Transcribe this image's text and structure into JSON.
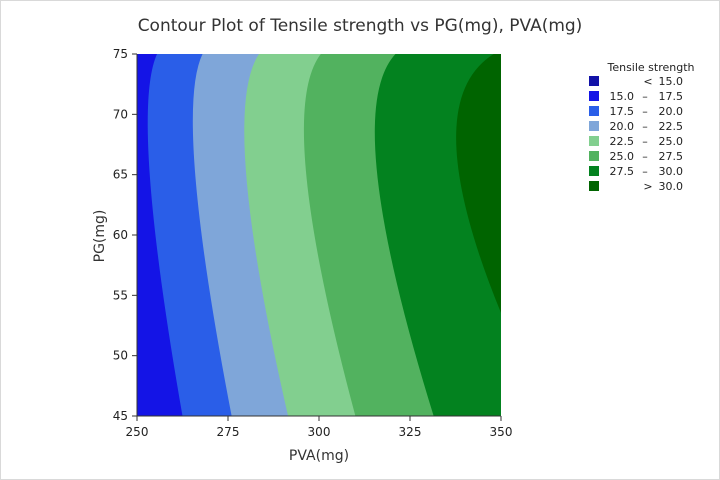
{
  "chart_data": {
    "type": "contour",
    "title": "Contour Plot of Tensile strength vs PG(mg), PVA(mg)",
    "xlabel": "PVA(mg)",
    "ylabel": "PG(mg)",
    "xlim": [
      250,
      350
    ],
    "ylim": [
      45,
      75
    ],
    "x_ticks": [
      250,
      275,
      300,
      325,
      350
    ],
    "y_ticks": [
      45,
      50,
      55,
      60,
      65,
      70,
      75
    ],
    "x_tick_labels": [
      "250",
      "275",
      "300",
      "325",
      "350"
    ],
    "y_tick_labels": [
      "45",
      "50",
      "55",
      "60",
      "65",
      "70",
      "75"
    ],
    "response": "Tensile strength",
    "contour_boundaries": [
      {
        "level": 15.0,
        "x_at_y": [
          [
            45,
            250.0
          ],
          [
            65,
            250.0
          ],
          [
            75,
            250.0
          ]
        ]
      },
      {
        "level": 17.5,
        "x_at_y": [
          [
            45,
            262.5
          ],
          [
            65,
            253.5
          ],
          [
            75,
            255.5
          ]
        ]
      },
      {
        "level": 20.0,
        "x_at_y": [
          [
            45,
            276.0
          ],
          [
            65,
            266.0
          ],
          [
            75,
            268.0
          ]
        ]
      },
      {
        "level": 22.5,
        "x_at_y": [
          [
            45,
            291.5
          ],
          [
            65,
            280.0
          ],
          [
            75,
            283.5
          ]
        ]
      },
      {
        "level": 25.0,
        "x_at_y": [
          [
            45,
            310.0
          ],
          [
            65,
            296.5
          ],
          [
            75,
            300.5
          ]
        ]
      },
      {
        "level": 27.5,
        "x_at_y": [
          [
            45,
            331.5
          ],
          [
            65,
            316.0
          ],
          [
            75,
            321.0
          ]
        ]
      },
      {
        "level": 30.0,
        "x_at_y": [
          [
            45,
            363.0
          ],
          [
            65,
            338.5
          ],
          [
            75,
            348.0
          ]
        ]
      }
    ],
    "legend": {
      "title": "Tensile strength",
      "placement": "right",
      "entries": [
        {
          "op": "<",
          "lo": "",
          "hi": "15.0",
          "color": "#1212a8"
        },
        {
          "op": "",
          "lo": "15.0",
          "hi": "17.5",
          "color": "#1414e6"
        },
        {
          "op": "",
          "lo": "17.5",
          "hi": "20.0",
          "color": "#2a5ee8"
        },
        {
          "op": "",
          "lo": "20.0",
          "hi": "22.5",
          "color": "#7fa6d9"
        },
        {
          "op": "",
          "lo": "22.5",
          "hi": "25.0",
          "color": "#82cf8f"
        },
        {
          "op": "",
          "lo": "25.0",
          "hi": "27.5",
          "color": "#52b25f"
        },
        {
          "op": "",
          "lo": "27.5",
          "hi": "30.0",
          "color": "#03821f"
        },
        {
          "op": ">",
          "lo": "30.0",
          "hi": "",
          "color": "#006400"
        }
      ]
    }
  }
}
